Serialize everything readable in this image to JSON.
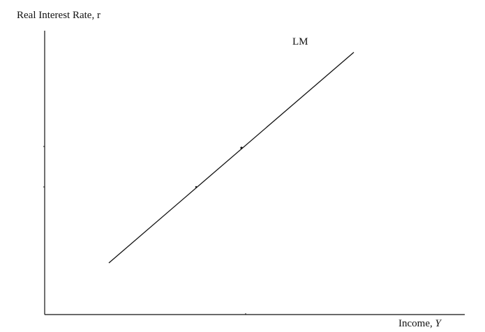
{
  "diagram": {
    "y_axis_label": "Real Interest Rate, r",
    "x_axis_label_prefix": "Income,",
    "x_axis_label_var": "Y",
    "curve_label": "LM",
    "line_color": "#111111"
  }
}
